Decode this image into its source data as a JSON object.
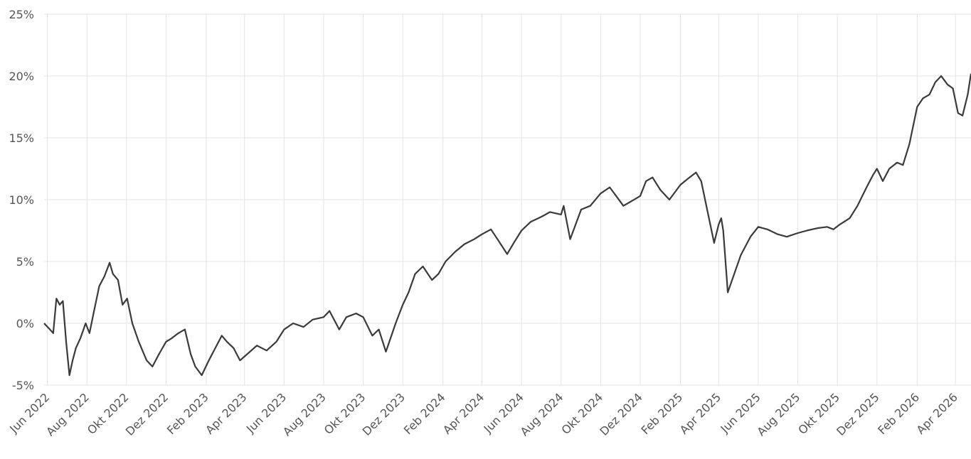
{
  "chart_data": {
    "type": "line",
    "title": "",
    "xlabel": "",
    "ylabel": "",
    "ylim": [
      -5,
      25
    ],
    "y_ticks": [
      {
        "value": 25,
        "label": "25%"
      },
      {
        "value": 20,
        "label": "20%"
      },
      {
        "value": 15,
        "label": "15%"
      },
      {
        "value": 10,
        "label": "10%"
      },
      {
        "value": 5,
        "label": "5%"
      },
      {
        "value": 0,
        "label": "0%"
      },
      {
        "value": -5,
        "label": "-5%"
      }
    ],
    "x_ticks": [
      {
        "date": "2022-06-01",
        "label": "Jun 2022"
      },
      {
        "date": "2022-08-01",
        "label": "Aug 2022"
      },
      {
        "date": "2022-10-01",
        "label": "Okt 2022"
      },
      {
        "date": "2022-12-01",
        "label": "Dez 2022"
      },
      {
        "date": "2023-02-01",
        "label": "Feb 2023"
      },
      {
        "date": "2023-04-01",
        "label": "Apr 2023"
      },
      {
        "date": "2023-06-01",
        "label": "Jun 2023"
      },
      {
        "date": "2023-08-01",
        "label": "Aug 2023"
      },
      {
        "date": "2023-10-01",
        "label": "Okt 2023"
      },
      {
        "date": "2023-12-01",
        "label": "Dez 2023"
      },
      {
        "date": "2024-02-01",
        "label": "Feb 2024"
      },
      {
        "date": "2024-04-01",
        "label": "Apr 2024"
      },
      {
        "date": "2024-06-01",
        "label": "Jun 2024"
      },
      {
        "date": "2024-08-01",
        "label": "Aug 2024"
      },
      {
        "date": "2024-10-01",
        "label": "Okt 2024"
      },
      {
        "date": "2024-12-01",
        "label": "Dez 2024"
      },
      {
        "date": "2025-02-01",
        "label": "Feb 2025"
      },
      {
        "date": "2025-04-01",
        "label": "Apr 2025"
      },
      {
        "date": "2025-06-01",
        "label": "Jun 2025"
      },
      {
        "date": "2025-08-01",
        "label": "Aug 2025"
      },
      {
        "date": "2025-10-01",
        "label": "Okt 2025"
      },
      {
        "date": "2025-12-01",
        "label": "Dez 2025"
      },
      {
        "date": "2026-02-01",
        "label": "Feb 2026"
      },
      {
        "date": "2026-04-01",
        "label": "Apr 2026"
      }
    ],
    "grid": true,
    "legend": "none",
    "line_color": "#3a3a3a",
    "series": [
      {
        "x": [
          "2022-05-27",
          "2022-06-05",
          "2022-06-10",
          "2022-06-15",
          "2022-06-20",
          "2022-06-25",
          "2022-06-30",
          "2022-07-05",
          "2022-07-10",
          "2022-07-15",
          "2022-07-22",
          "2022-07-30",
          "2022-08-05",
          "2022-08-12",
          "2022-08-20",
          "2022-08-28",
          "2022-09-05",
          "2022-09-10",
          "2022-09-18",
          "2022-09-25",
          "2022-10-02",
          "2022-10-10",
          "2022-10-20",
          "2022-11-01",
          "2022-11-10",
          "2022-11-20",
          "2022-12-01",
          "2022-12-10",
          "2022-12-20",
          "2022-12-30",
          "2023-01-08",
          "2023-01-15",
          "2023-01-25",
          "2023-02-05",
          "2023-02-15",
          "2023-02-25",
          "2023-03-05",
          "2023-03-15",
          "2023-03-25",
          "2023-04-05",
          "2023-04-20",
          "2023-05-05",
          "2023-05-20",
          "2023-06-01",
          "2023-06-15",
          "2023-07-01",
          "2023-07-15",
          "2023-08-01",
          "2023-08-10",
          "2023-08-25",
          "2023-09-05",
          "2023-09-20",
          "2023-10-01",
          "2023-10-15",
          "2023-10-25",
          "2023-11-05",
          "2023-11-20",
          "2023-12-01",
          "2023-12-10",
          "2023-12-20",
          "2024-01-01",
          "2024-01-15",
          "2024-01-25",
          "2024-02-05",
          "2024-02-20",
          "2024-03-05",
          "2024-03-20",
          "2024-04-01",
          "2024-04-15",
          "2024-04-25",
          "2024-05-10",
          "2024-05-20",
          "2024-06-01",
          "2024-06-15",
          "2024-07-01",
          "2024-07-15",
          "2024-08-01",
          "2024-08-05",
          "2024-08-15",
          "2024-09-01",
          "2024-09-15",
          "2024-10-01",
          "2024-10-15",
          "2024-10-25",
          "2024-11-05",
          "2024-11-15",
          "2024-12-01",
          "2024-12-10",
          "2024-12-20",
          "2025-01-01",
          "2025-01-15",
          "2025-02-01",
          "2025-02-15",
          "2025-02-25",
          "2025-03-05",
          "2025-03-15",
          "2025-03-25",
          "2025-04-01",
          "2025-04-05",
          "2025-04-08",
          "2025-04-15",
          "2025-04-25",
          "2025-05-05",
          "2025-05-20",
          "2025-06-01",
          "2025-06-15",
          "2025-07-01",
          "2025-07-15",
          "2025-08-01",
          "2025-08-15",
          "2025-09-01",
          "2025-09-15",
          "2025-09-25",
          "2025-10-05",
          "2025-10-20",
          "2025-11-01",
          "2025-11-15",
          "2025-11-25",
          "2025-12-01",
          "2025-12-10",
          "2025-12-20",
          "2026-01-01",
          "2026-01-10",
          "2026-01-20",
          "2026-02-01",
          "2026-02-10",
          "2026-02-20",
          "2026-03-01",
          "2026-03-10",
          "2026-03-20",
          "2026-03-28",
          "2026-04-05",
          "2026-04-12",
          "2026-04-20",
          "2026-04-25"
        ],
        "values": [
          0,
          -0.5,
          -0.8,
          2.0,
          1.5,
          1.8,
          -1.5,
          -4.2,
          -3.0,
          -2.0,
          -1.2,
          0.0,
          -0.8,
          1.0,
          3.0,
          3.8,
          4.9,
          4.0,
          3.5,
          1.5,
          2.0,
          0.0,
          -1.5,
          -3.0,
          -3.5,
          -2.5,
          -1.5,
          -1.2,
          -0.8,
          -0.5,
          -2.5,
          -3.5,
          -4.2,
          -3.0,
          -2.0,
          -1.0,
          -1.5,
          -2.0,
          -3.0,
          -2.5,
          -1.8,
          -2.2,
          -1.5,
          -0.5,
          0.0,
          -0.3,
          0.3,
          0.5,
          1.0,
          -0.5,
          0.5,
          0.8,
          0.5,
          -1.0,
          -0.5,
          -2.3,
          0.0,
          1.5,
          2.5,
          4.0,
          4.6,
          3.5,
          4.0,
          5.0,
          5.8,
          6.4,
          6.8,
          7.2,
          7.6,
          6.8,
          5.6,
          6.5,
          7.5,
          8.2,
          8.6,
          9.0,
          8.8,
          9.5,
          6.8,
          9.2,
          9.5,
          10.5,
          11.0,
          10.3,
          9.5,
          9.8,
          10.3,
          11.5,
          11.8,
          10.8,
          10.0,
          11.2,
          11.8,
          12.2,
          11.5,
          9.0,
          6.5,
          8.0,
          8.5,
          7.5,
          2.5,
          4.0,
          5.5,
          7.0,
          7.8,
          7.6,
          7.2,
          7.0,
          7.3,
          7.5,
          7.7,
          7.8,
          7.6,
          8.0,
          8.5,
          9.5,
          11.0,
          12.0,
          12.5,
          11.5,
          12.5,
          13.0,
          12.8,
          14.5,
          17.5,
          18.2,
          18.5,
          19.5,
          20.0,
          19.3,
          19.0,
          17.0,
          16.8,
          18.5,
          20.2
        ]
      }
    ]
  }
}
